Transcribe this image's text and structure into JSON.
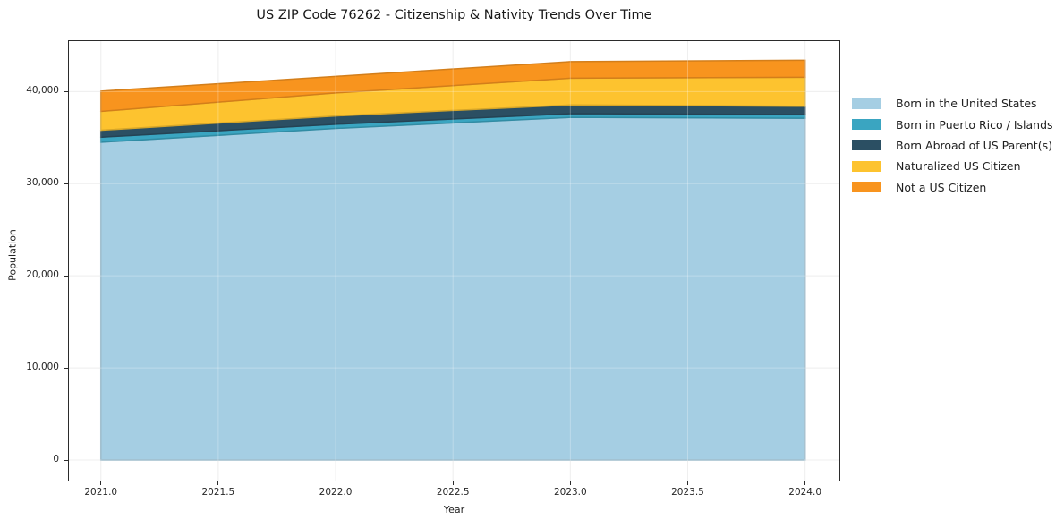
{
  "chart_data": {
    "type": "area",
    "stacked": true,
    "title": "US ZIP Code 76262 - Citizenship & Nativity Trends Over Time",
    "xlabel": "Year",
    "ylabel": "Population",
    "x": [
      2021,
      2022,
      2023,
      2024
    ],
    "series": [
      {
        "name": "Born in the United States",
        "color": "#a5cee3",
        "values": [
          34500,
          36000,
          37200,
          37100
        ]
      },
      {
        "name": "Born in Puerto Rico / Islands",
        "color": "#3aa5c1",
        "values": [
          550,
          450,
          400,
          400
        ]
      },
      {
        "name": "Born Abroad of US Parent(s)",
        "color": "#2b4f63",
        "values": [
          750,
          900,
          950,
          900
        ]
      },
      {
        "name": "Naturalized US Citizen",
        "color": "#fdc32f",
        "values": [
          2050,
          2500,
          2900,
          3150
        ]
      },
      {
        "name": "Not a US Citizen",
        "color": "#f8941e",
        "values": [
          2200,
          1800,
          1800,
          1850
        ]
      }
    ],
    "stacked_totals": [
      40050,
      41650,
      43250,
      43400
    ],
    "x_tick_values": [
      2021.0,
      2021.5,
      2022.0,
      2022.5,
      2023.0,
      2023.5,
      2024.0
    ],
    "x_ticks": [
      "2021.0",
      "2021.5",
      "2022.0",
      "2022.5",
      "2023.0",
      "2023.5",
      "2024.0"
    ],
    "y_tick_values": [
      0,
      10000,
      20000,
      30000,
      40000
    ],
    "y_ticks": [
      "0",
      "10,000",
      "20,000",
      "30,000",
      "40,000"
    ],
    "xlim": [
      2020.86,
      2024.15
    ],
    "ylim": [
      -2330,
      45570
    ],
    "grid": true,
    "grid_color": "#e9e9e9",
    "spine_color": "#2b2b2b",
    "legend_position": "right"
  }
}
